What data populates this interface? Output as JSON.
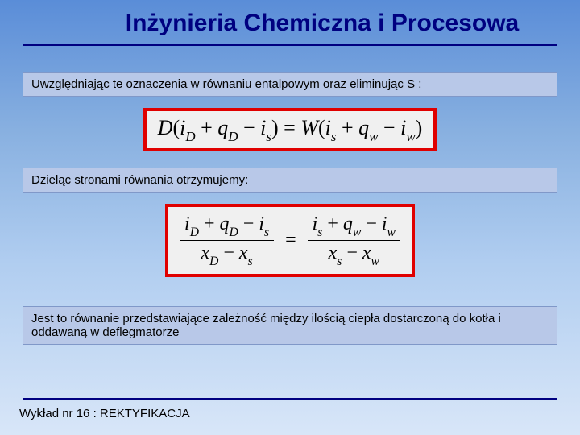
{
  "title": "Inżynieria Chemiczna i Procesowa",
  "text1": "Uwzględniając te oznaczenia w równaniu entalpowym  oraz eliminując S :",
  "text2": "Dzieląc stronami równania otrzymujemy:",
  "text3": "Jest to równanie przedstawiające zależność między ilością ciepła dostarczoną do kotła i oddawaną w deflegmatorze",
  "footer": "Wykład nr 16  : REKTYFIKACJA",
  "eq1": {
    "D": "D",
    "iD": "i",
    "iD_sub": "D",
    "qD": "q",
    "qD_sub": "D",
    "is": "i",
    "is_sub": "s",
    "W": "W",
    "qw": "q",
    "qw_sub": "w",
    "iw": "i",
    "iw_sub": "w"
  },
  "eq2": {
    "iD": "i",
    "iD_sub": "D",
    "qD": "q",
    "qD_sub": "D",
    "is": "i",
    "is_sub": "s",
    "xD": "x",
    "xD_sub": "D",
    "xs": "x",
    "xs_sub": "s",
    "qw": "q",
    "qw_sub": "w",
    "iw": "i",
    "iw_sub": "w",
    "xw": "x",
    "xw_sub": "w"
  },
  "colors": {
    "title": "#000080",
    "rule": "#000080",
    "eq_border": "#e00000",
    "eq_bg": "#f0f0f0",
    "textbox_bg": "#b8c8e8",
    "bg_top": "#5a8dd8",
    "bg_bottom": "#d8e6f8"
  }
}
